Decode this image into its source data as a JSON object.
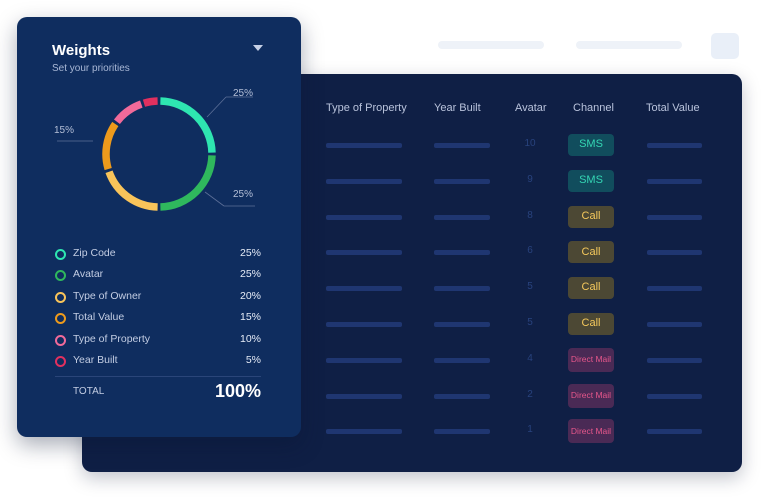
{
  "table": {
    "columns": [
      "Type of Property",
      "Year Built",
      "Avatar",
      "Channel",
      "Total Value"
    ],
    "rows": [
      {
        "avatar": "10",
        "channel": "SMS",
        "channel_type": "sms"
      },
      {
        "avatar": "9",
        "channel": "SMS",
        "channel_type": "sms"
      },
      {
        "avatar": "8",
        "channel": "Call",
        "channel_type": "call"
      },
      {
        "avatar": "6",
        "channel": "Call",
        "channel_type": "call"
      },
      {
        "avatar": "5",
        "channel": "Call",
        "channel_type": "call"
      },
      {
        "avatar": "5",
        "channel": "Call",
        "channel_type": "call"
      },
      {
        "avatar": "4",
        "channel": "Direct Mail",
        "channel_type": "mail"
      },
      {
        "avatar": "2",
        "channel": "Direct Mail",
        "channel_type": "mail"
      },
      {
        "avatar": "1",
        "channel": "Direct Mail",
        "channel_type": "mail"
      }
    ]
  },
  "weights": {
    "title": "Weights",
    "subtitle": "Set your priorities",
    "donut_labels": {
      "top_right": "25%",
      "left": "15%",
      "bottom_right": "25%"
    },
    "segments": [
      {
        "label": "Zip Code",
        "value": "25%",
        "percent": 25,
        "color": "#2ee6b1"
      },
      {
        "label": "Avatar",
        "value": "25%",
        "percent": 25,
        "color": "#2fb85d"
      },
      {
        "label": "Type of Owner",
        "value": "20%",
        "percent": 20,
        "color": "#f9c45a"
      },
      {
        "label": "Total Value",
        "value": "15%",
        "percent": 15,
        "color": "#ed9a1c"
      },
      {
        "label": "Type of Property",
        "value": "10%",
        "percent": 10,
        "color": "#f16a9a"
      },
      {
        "label": "Year Built",
        "value": "5%",
        "percent": 5,
        "color": "#e1305f"
      }
    ],
    "total_label": "TOTAL",
    "total_value": "100%"
  }
}
